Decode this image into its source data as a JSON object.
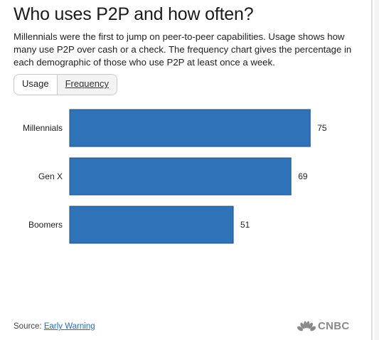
{
  "header": {
    "title": "Who uses P2P and how often?",
    "subtitle": "Millennials were the first to jump on peer-to-peer capabilities. Usage shows how many use P2P over cash or a check. The frequency chart gives the percentage in each demographic of those who use P2P at least once a week."
  },
  "tabs": [
    {
      "label": "Usage",
      "active": true
    },
    {
      "label": "Frequency",
      "active": false
    }
  ],
  "footer": {
    "source_prefix": "Source:",
    "source_link": "Early Warning",
    "logo_text": "CNBC",
    "logo_icon": "nbc-peacock-icon"
  },
  "colors": {
    "bar": "#3173b8",
    "bar_border": "#1e4f80"
  },
  "chart_data": {
    "type": "bar",
    "orientation": "horizontal",
    "categories": [
      "Millennials",
      "Gen X",
      "Boomers"
    ],
    "values": [
      75,
      69,
      51
    ],
    "title": "",
    "xlabel": "",
    "ylabel": "",
    "grid": false,
    "data_labels": true
  }
}
